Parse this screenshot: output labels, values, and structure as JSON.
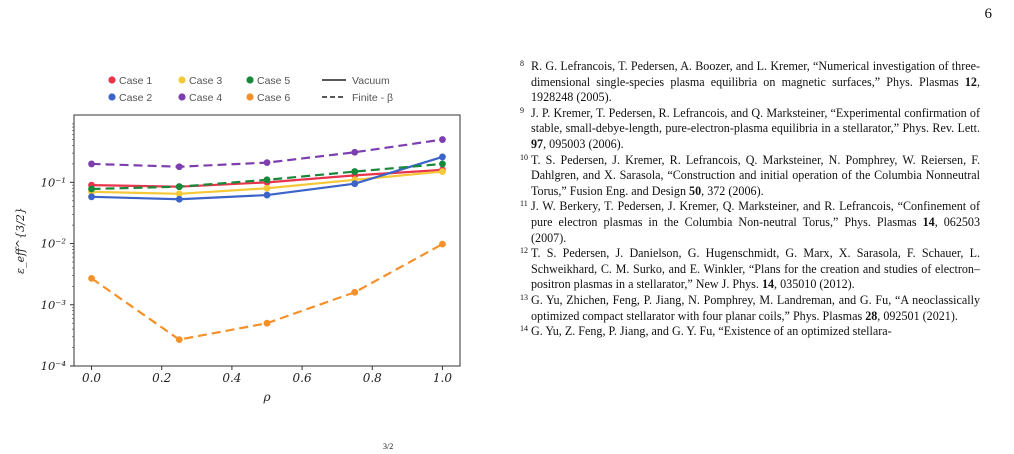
{
  "page": {
    "number": "6",
    "bottom_fragment": "3/2"
  },
  "chart_data": {
    "type": "line",
    "xlabel": "ρ",
    "ylabel": "ε_eff^{3/2}",
    "xlim": [
      -0.05,
      1.05
    ],
    "ylim_log10": [
      -4,
      0.1
    ],
    "log_y": true,
    "grid": false,
    "x_ticks": [
      "0.0",
      "0.2",
      "0.4",
      "0.6",
      "0.8",
      "1.0"
    ],
    "y_ticks": [
      "10⁻¹",
      "10⁻²",
      "10⁻³",
      "10⁻⁴"
    ],
    "legend_position": "top",
    "legend": [
      {
        "label": "Case 1",
        "color": "#e8344d",
        "kind": "dot"
      },
      {
        "label": "Case 3",
        "color": "#f5c838",
        "kind": "dot"
      },
      {
        "label": "Case 5",
        "color": "#18883a",
        "kind": "dot"
      },
      {
        "label": "Vacuum",
        "color": "#222222",
        "kind": "solid"
      },
      {
        "label": "Case 2",
        "color": "#3c63c8",
        "kind": "dot"
      },
      {
        "label": "Case 4",
        "color": "#7d3fb0",
        "kind": "dot"
      },
      {
        "label": "Case 6",
        "color": "#f4912a",
        "kind": "dot"
      },
      {
        "label": "Finite - β",
        "color": "#222222",
        "kind": "dashed"
      }
    ],
    "x": [
      0.0,
      0.25,
      0.5,
      0.75,
      1.0
    ],
    "series": [
      {
        "name": "Case 1",
        "color": "#e8344d",
        "dash": false,
        "values": [
          0.09,
          0.085,
          0.1,
          0.13,
          0.16
        ]
      },
      {
        "name": "Case 3",
        "color": "#f5c838",
        "dash": false,
        "values": [
          0.07,
          0.065,
          0.08,
          0.11,
          0.15
        ]
      },
      {
        "name": "Case 2",
        "color": "#3c63c8",
        "dash": false,
        "values": [
          0.058,
          0.053,
          0.062,
          0.095,
          0.26
        ]
      },
      {
        "name": "Case 4",
        "color": "#7d3fb0",
        "dash": true,
        "values": [
          0.2,
          0.18,
          0.21,
          0.31,
          0.5
        ]
      },
      {
        "name": "Case 5",
        "color": "#18883a",
        "dash": true,
        "values": [
          0.078,
          0.085,
          0.11,
          0.15,
          0.2
        ]
      },
      {
        "name": "Case 6",
        "color": "#f4912a",
        "dash": true,
        "values": [
          0.0027,
          0.00027,
          0.0005,
          0.0016,
          0.0098
        ]
      }
    ]
  },
  "references": [
    {
      "num": "8",
      "parts": [
        {
          "t": "R. G. Lefrancois, T. Pedersen, A. Boozer, and L. Kremer, “Numerical investigation of three-dimensional single-species plasma equilibria on magnetic surfaces,” Phys. Plasmas "
        },
        {
          "t": "12",
          "b": true
        },
        {
          "t": ", 1928248 (2005)."
        }
      ]
    },
    {
      "num": "9",
      "parts": [
        {
          "t": "J. P. Kremer, T. Pedersen, R. Lefrancois, and Q. Marksteiner, “Experimental confirmation of stable, small-debye-length, pure-electron-plasma equilibria in a stellarator,” Phys. Rev. Lett. "
        },
        {
          "t": "97",
          "b": true
        },
        {
          "t": ", 095003 (2006)."
        }
      ]
    },
    {
      "num": "10",
      "parts": [
        {
          "t": "T. S. Pedersen, J. Kremer, R. Lefrancois, Q. Marksteiner, N. Pomphrey, W. Reiersen, F. Dahlgren, and X. Sarasola, “Construction and initial operation of the Columbia Nonneutral Torus,” Fusion Eng. and Design "
        },
        {
          "t": "50",
          "b": true
        },
        {
          "t": ", 372 (2006)."
        }
      ]
    },
    {
      "num": "11",
      "parts": [
        {
          "t": "J. W. Berkery, T. Pedersen, J. Kremer, Q. Marksteiner, and R. Lefrancois, “Confinement of pure electron plasmas in the Columbia Non-neutral Torus,” Phys. Plasmas "
        },
        {
          "t": "14",
          "b": true
        },
        {
          "t": ", 062503 (2007)."
        }
      ]
    },
    {
      "num": "12",
      "parts": [
        {
          "t": "T. S. Pedersen, J. Danielson, G. Hugenschmidt, G. Marx, X. Sarasola, F. Schauer, L. Schweikhard, C. M. Surko, and E. Winkler, “Plans for the creation and studies of electron–positron plasmas in a stellarator,” New J. Phys. "
        },
        {
          "t": "14",
          "b": true
        },
        {
          "t": ", 035010 (2012)."
        }
      ]
    },
    {
      "num": "13",
      "parts": [
        {
          "t": "G. Yu, Zhichen, Feng, P. Jiang, N. Pomphrey, M. Landreman, and G. Fu, “A neoclassically optimized compact stellarator with four planar coils,” Phys. Plasmas "
        },
        {
          "t": "28",
          "b": true
        },
        {
          "t": ", 092501 (2021)."
        }
      ]
    },
    {
      "num": "14",
      "parts": [
        {
          "t": "G. Yu, Z. Feng, P. Jiang, and G. Y. Fu, “Existence of an optimized stellara-"
        }
      ]
    }
  ]
}
